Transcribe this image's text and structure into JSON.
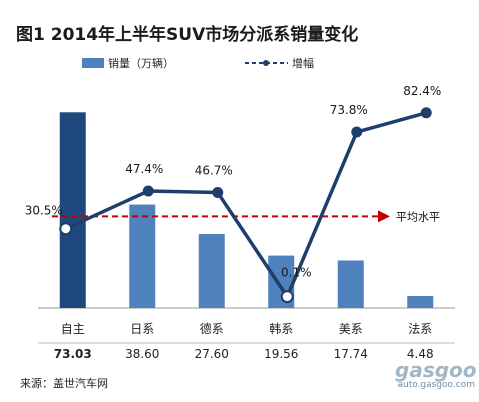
{
  "title": "图1  2014年上半年SUV市场分派系销量变化",
  "legend": {
    "bar_label": "销量（万辆）",
    "line_label": "增幅"
  },
  "source": "来源：盖世汽车网",
  "watermark": {
    "brand": "gasgoo",
    "url": "auto.gasgoo.com"
  },
  "colors": {
    "bar": "#4f81bd",
    "bar_highlight": "#1f497d",
    "line": "#1f3e6b",
    "avg_line": "#c00000"
  },
  "chart_data": {
    "type": "bar",
    "categories": [
      "自主",
      "日系",
      "德系",
      "韩系",
      "美系",
      "法系"
    ],
    "series": [
      {
        "name": "销量（万辆）",
        "type": "bar",
        "values": [
          73.03,
          38.6,
          27.6,
          19.56,
          17.74,
          4.48
        ],
        "value_labels": [
          "73.03",
          "38.60",
          "27.60",
          "19.56",
          "17.74",
          "4.48"
        ]
      },
      {
        "name": "增幅",
        "type": "line",
        "values": [
          30.5,
          47.4,
          46.7,
          0.1,
          73.8,
          82.4
        ],
        "value_labels": [
          "30.5%",
          "47.4%",
          "46.7%",
          "0.1%",
          "73.8%",
          "82.4%"
        ]
      }
    ],
    "reference_line": {
      "label": "平均水平",
      "value": 36.0,
      "style": "dashed",
      "axis": "secondary"
    },
    "y_bar_lim": [
      0,
      75
    ],
    "y_line_lim": [
      -5,
      85
    ],
    "grid": false,
    "legend_position": "top",
    "highlight_category": "自主"
  }
}
